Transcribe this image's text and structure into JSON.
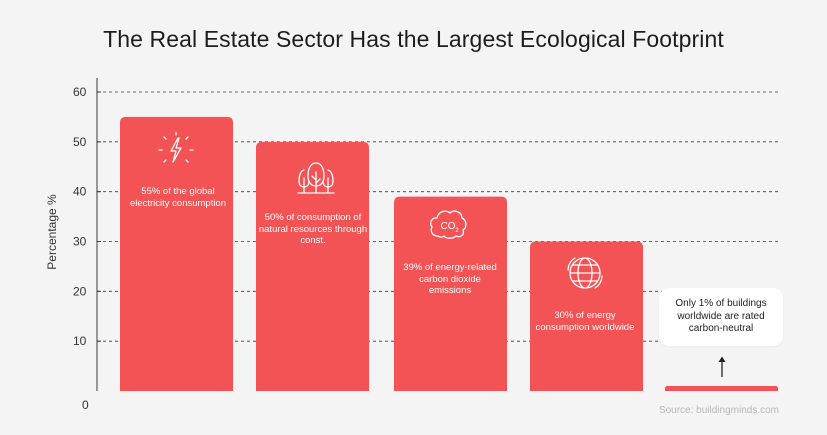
{
  "chart_data": {
    "type": "bar",
    "title": "The Real Estate Sector Has the Largest Ecological Footprint",
    "ylabel": "Percentage %",
    "xlabel": "",
    "ylim": [
      0,
      60
    ],
    "yticks": [
      "0",
      "10",
      "20",
      "30",
      "40",
      "50",
      "60"
    ],
    "grid": true,
    "bar_color": "#f35354",
    "values": [
      55,
      50,
      39,
      30,
      1
    ],
    "bar_labels": [
      "55% of the global electricity consumption",
      "50% of consumption of natural resources through const.",
      "39% of energy-related carbon dioxide emissions",
      "30% of energy consumption worldwide",
      "Only 1% of buildings worldwide are rated carbon-neutral"
    ],
    "icons": [
      "lightning-icon",
      "trees-icon",
      "co2-cloud-icon",
      "globe-icon"
    ],
    "source": "Source: buildingminds.com"
  }
}
